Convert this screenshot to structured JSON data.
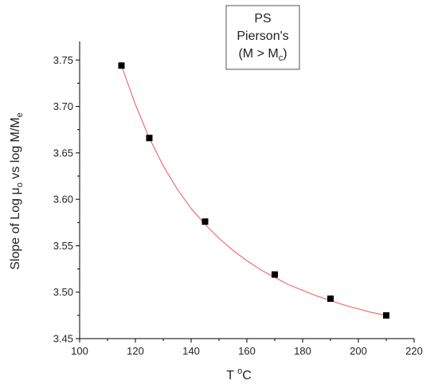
{
  "chart_data": {
    "type": "scatter",
    "xlabel": {
      "main": "T ",
      "sup": "o",
      "tail": "C"
    },
    "ylabel": {
      "p1": "Slope of Log ",
      "mu": "μ",
      "sub1": "o",
      "p2": " vs log M/M",
      "sub2": "e"
    },
    "legend": {
      "line1": "PS",
      "line2": "Pierson's",
      "line3_main": "(M > M",
      "line3_sub": "c",
      "line3_tail": ")"
    },
    "xlim": [
      100,
      220
    ],
    "ylim": [
      3.45,
      3.77
    ],
    "xticks": [
      100,
      120,
      140,
      160,
      180,
      200,
      220
    ],
    "yticks": [
      3.45,
      3.5,
      3.55,
      3.6,
      3.65,
      3.7,
      3.75
    ],
    "ytick_labels": [
      "3.45",
      "3.50",
      "3.55",
      "3.60",
      "3.65",
      "3.70",
      "3.75"
    ],
    "series": [
      {
        "x": [
          115,
          125,
          145,
          170,
          190,
          210
        ],
        "y": [
          3.744,
          3.666,
          3.576,
          3.519,
          3.493,
          3.475
        ],
        "marker": "square",
        "color": "#000000"
      }
    ],
    "fit_curve": {
      "color": "#f07070",
      "x": [
        115,
        120,
        125,
        130,
        135,
        140,
        145,
        150,
        155,
        160,
        165,
        170,
        175,
        180,
        185,
        190,
        195,
        200,
        205,
        210
      ],
      "y": [
        3.744,
        3.702,
        3.666,
        3.636,
        3.611,
        3.59,
        3.573,
        3.558,
        3.545,
        3.534,
        3.524,
        3.516,
        3.508,
        3.502,
        3.496,
        3.491,
        3.486,
        3.482,
        3.478,
        3.475
      ]
    },
    "grid": false
  }
}
